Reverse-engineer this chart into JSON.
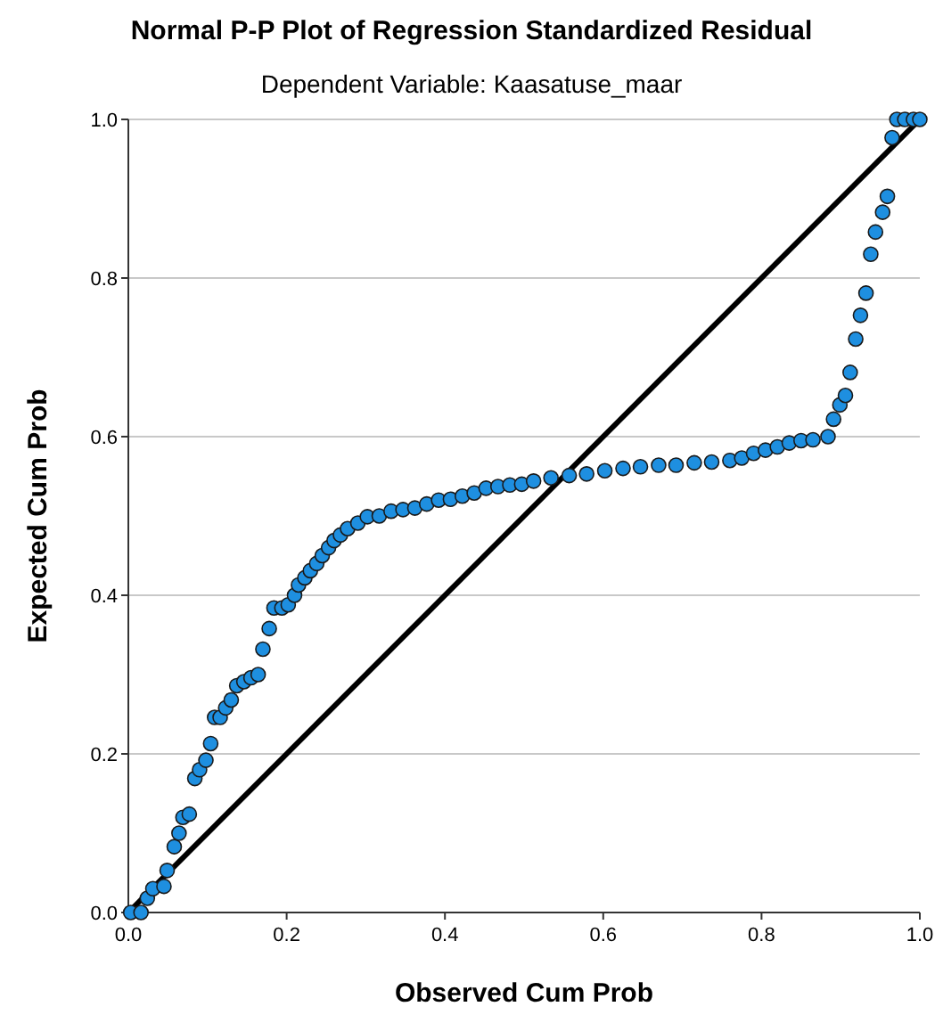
{
  "chart_data": {
    "type": "scatter",
    "title": "Normal P-P Plot of Regression Standardized Residual",
    "subtitle": "Dependent Variable: Kaasatuse_maar",
    "xlabel": "Observed Cum Prob",
    "ylabel": "Expected Cum Prob",
    "xlim": [
      0,
      1
    ],
    "ylim": [
      0,
      1
    ],
    "xticks": [
      {
        "value": 0,
        "label": "0.0"
      },
      {
        "value": 0.2,
        "label": "0.2"
      },
      {
        "value": 0.4,
        "label": "0.4"
      },
      {
        "value": 0.6,
        "label": "0.6"
      },
      {
        "value": 0.8,
        "label": "0.8"
      },
      {
        "value": 1,
        "label": "1.0"
      }
    ],
    "yticks": [
      {
        "value": 0,
        "label": "0.0"
      },
      {
        "value": 0.2,
        "label": "0.2"
      },
      {
        "value": 0.4,
        "label": "0.4"
      },
      {
        "value": 0.6,
        "label": "0.6"
      },
      {
        "value": 0.8,
        "label": "0.8"
      },
      {
        "value": 1,
        "label": "1.0"
      }
    ],
    "grid": "y",
    "marker": "circle",
    "series": [
      {
        "color": "#1e8fe0",
        "x": [
          0.003,
          0.016,
          0.024,
          0.031,
          0.045,
          0.049,
          0.058,
          0.064,
          0.069,
          0.077,
          0.084,
          0.09,
          0.098,
          0.104,
          0.109,
          0.116,
          0.123,
          0.13,
          0.137,
          0.146,
          0.155,
          0.164,
          0.17,
          0.178,
          0.184,
          0.194,
          0.202,
          0.21,
          0.215,
          0.223,
          0.23,
          0.238,
          0.245,
          0.253,
          0.26,
          0.268,
          0.277,
          0.29,
          0.302,
          0.317,
          0.332,
          0.347,
          0.362,
          0.377,
          0.392,
          0.407,
          0.422,
          0.437,
          0.452,
          0.467,
          0.482,
          0.497,
          0.512,
          0.534,
          0.557,
          0.579,
          0.602,
          0.625,
          0.647,
          0.67,
          0.692,
          0.715,
          0.737,
          0.76,
          0.775,
          0.79,
          0.805,
          0.82,
          0.835,
          0.85,
          0.865,
          0.884,
          0.891,
          0.899,
          0.906,
          0.912,
          0.919,
          0.925,
          0.932,
          0.938,
          0.944,
          0.953,
          0.959,
          0.965,
          0.971,
          0.981,
          0.992,
          1.0
        ],
        "values": [
          0.0,
          0.0,
          0.018,
          0.03,
          0.033,
          0.053,
          0.083,
          0.1,
          0.12,
          0.124,
          0.169,
          0.18,
          0.192,
          0.213,
          0.246,
          0.246,
          0.258,
          0.268,
          0.286,
          0.291,
          0.296,
          0.3,
          0.332,
          0.358,
          0.384,
          0.384,
          0.388,
          0.4,
          0.413,
          0.422,
          0.431,
          0.44,
          0.45,
          0.46,
          0.469,
          0.476,
          0.484,
          0.491,
          0.499,
          0.5,
          0.506,
          0.508,
          0.51,
          0.515,
          0.52,
          0.521,
          0.525,
          0.529,
          0.535,
          0.537,
          0.539,
          0.54,
          0.544,
          0.548,
          0.551,
          0.553,
          0.557,
          0.56,
          0.562,
          0.564,
          0.564,
          0.567,
          0.568,
          0.57,
          0.573,
          0.579,
          0.583,
          0.587,
          0.592,
          0.595,
          0.596,
          0.6,
          0.622,
          0.64,
          0.652,
          0.681,
          0.723,
          0.753,
          0.781,
          0.83,
          0.858,
          0.883,
          0.903,
          0.977,
          1.0,
          1.0,
          1.0,
          1.0
        ]
      },
      {
        "type": "line",
        "color": "#000000",
        "line_style": "solid",
        "marker": "none",
        "x": [
          0,
          1
        ],
        "values": [
          0,
          1
        ]
      }
    ]
  }
}
